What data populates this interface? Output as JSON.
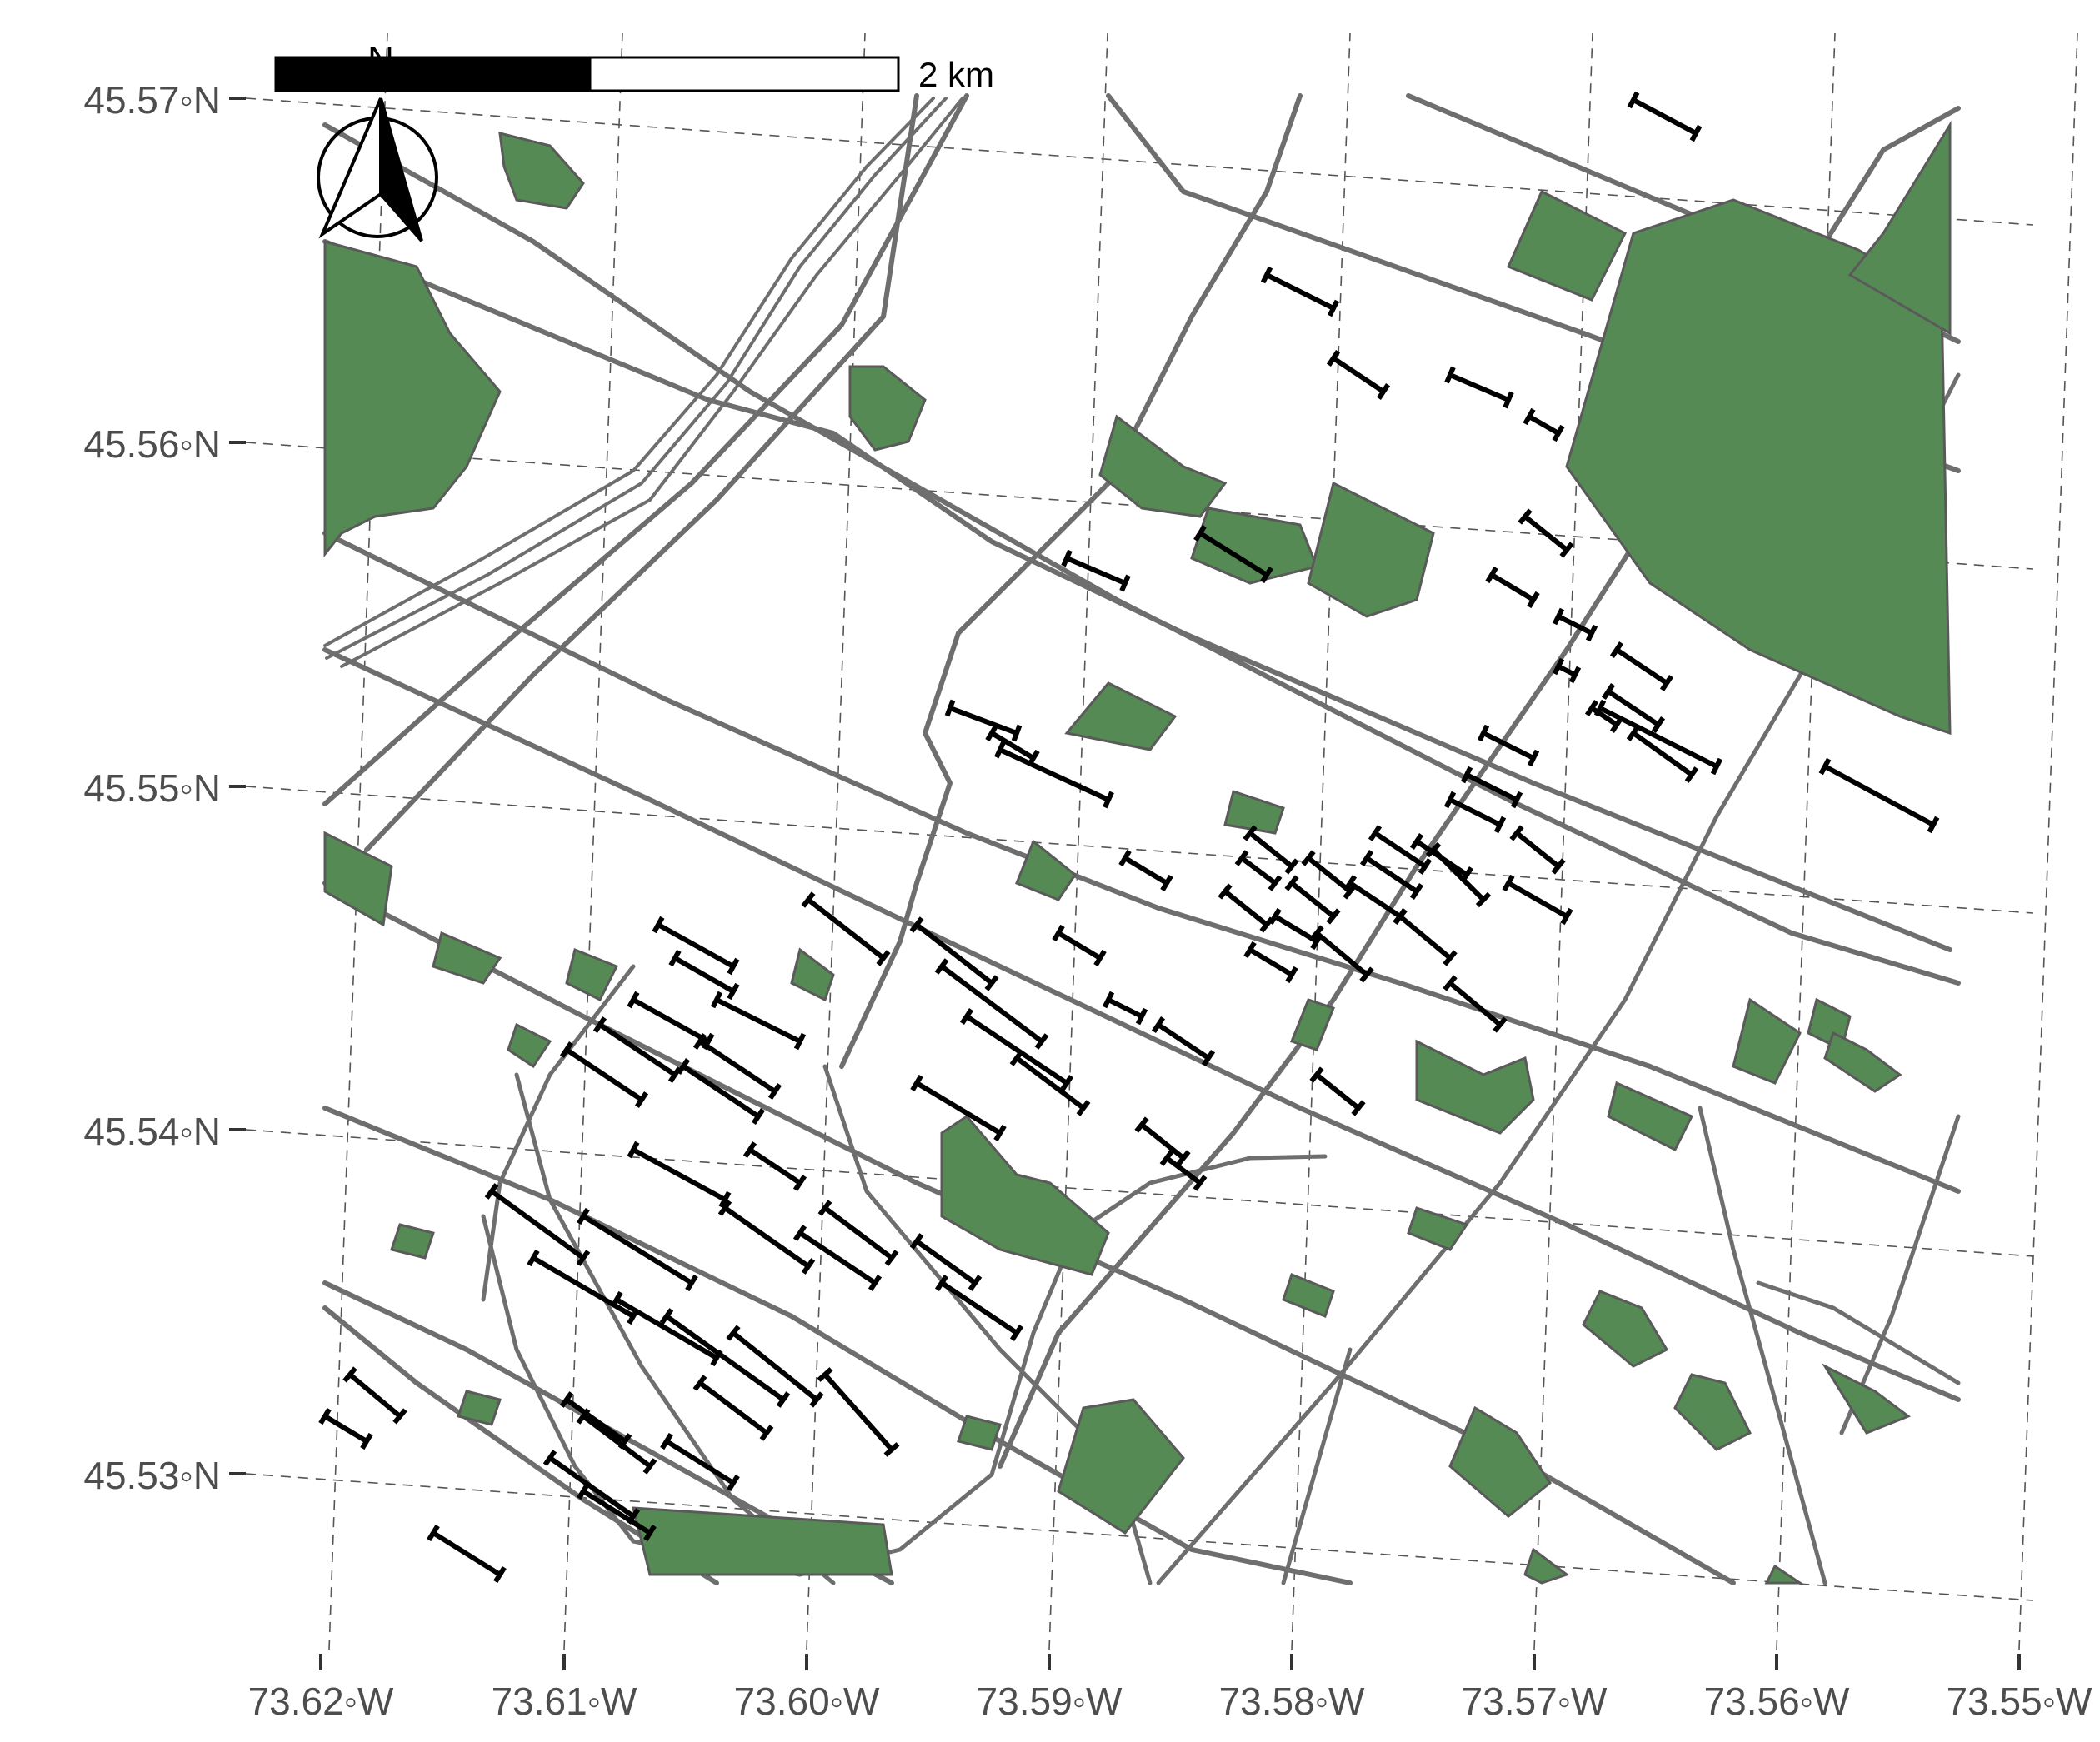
{
  "map": {
    "lat_labels": [
      "45.57◦N",
      "45.56◦N",
      "45.55◦N",
      "45.54◦N",
      "45.53◦N"
    ],
    "lon_labels": [
      "73.62◦W",
      "73.61◦W",
      "73.60◦W",
      "73.59◦W",
      "73.58◦W",
      "73.57◦W",
      "73.56◦W",
      "73.55◦W"
    ],
    "scale_bar": {
      "label": "2 km"
    },
    "north_arrow": {
      "letter": "N"
    },
    "layers": [
      "graticule",
      "roads",
      "parks",
      "bike-lanes"
    ],
    "colors": {
      "park_fill": "#568a55",
      "road": "#6e6e6e",
      "bike_lane": "#000000",
      "graticule": "#555555",
      "axis_text": "#4d4d4d"
    }
  }
}
